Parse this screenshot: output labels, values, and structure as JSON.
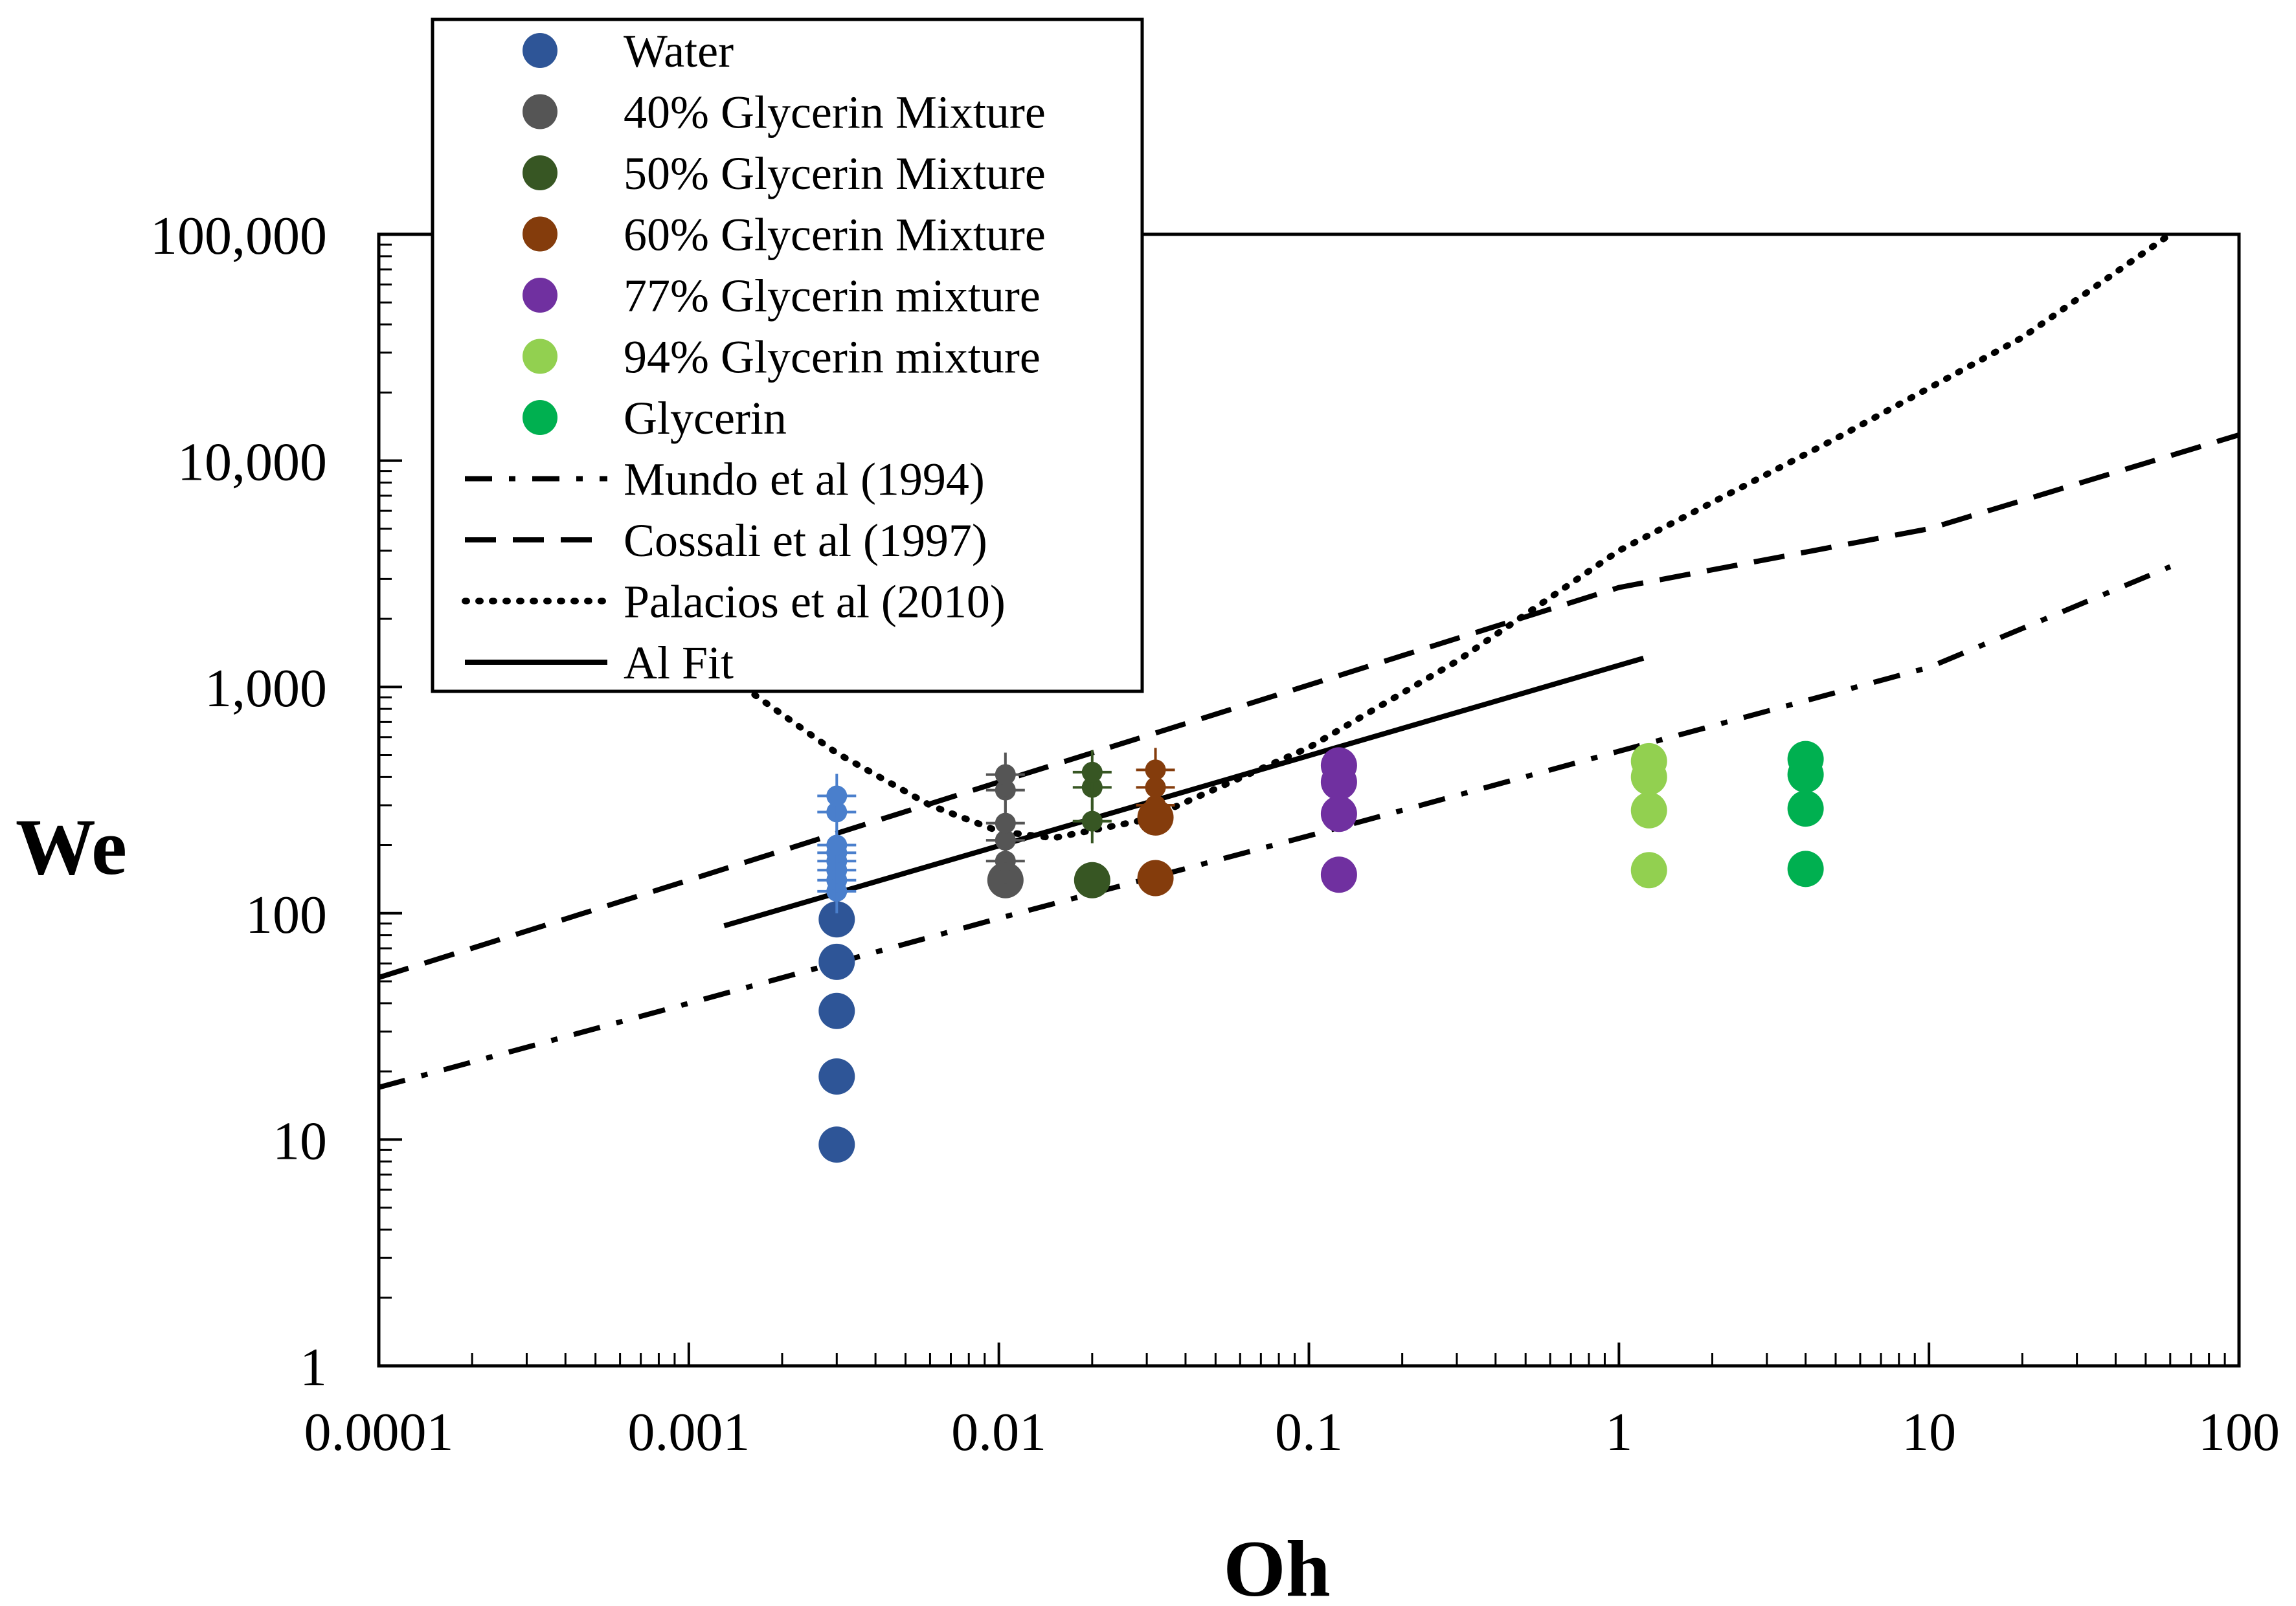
{
  "chart_data": {
    "type": "scatter",
    "title": "",
    "xlabel": "Oh",
    "ylabel": "We",
    "xscale": "log",
    "yscale": "log",
    "xlim": [
      0.0001,
      100
    ],
    "ylim": [
      1,
      100000
    ],
    "x_ticks": [
      0.0001,
      0.001,
      0.01,
      0.1,
      1,
      10,
      100
    ],
    "x_tick_labels": [
      "0.0001",
      "0.001",
      "0.01",
      "0.1",
      "1",
      "10",
      "100"
    ],
    "y_ticks": [
      1,
      10,
      100,
      1000,
      10000,
      100000
    ],
    "y_tick_labels": [
      "1",
      "10",
      "100",
      "1,000",
      "10,000",
      "100,000"
    ],
    "grid": false,
    "legend_position": "top-left, outside above plot",
    "series": [
      {
        "name": "Water",
        "kind": "scatter",
        "color": "#2E5597",
        "points": [
          [
            0.003,
            9.5
          ],
          [
            0.003,
            19
          ],
          [
            0.003,
            37
          ],
          [
            0.003,
            61
          ],
          [
            0.003,
            94
          ]
        ]
      },
      {
        "name": "Water (with error bars)",
        "kind": "errorbar",
        "color": "#4A7FCC",
        "legend": false,
        "points": [
          [
            0.003,
            125
          ],
          [
            0.003,
            140
          ],
          [
            0.003,
            155
          ],
          [
            0.003,
            170
          ],
          [
            0.003,
            185
          ],
          [
            0.003,
            200
          ],
          [
            0.003,
            280
          ],
          [
            0.003,
            330
          ]
        ]
      },
      {
        "name": "40% Glycerin Mixture",
        "kind": "scatter",
        "color": "#555555",
        "points": [
          [
            0.0105,
            140
          ]
        ]
      },
      {
        "name": "40% Glycerin Mixture (with error bars)",
        "kind": "errorbar",
        "color": "#555555",
        "legend": false,
        "points": [
          [
            0.0105,
            170
          ],
          [
            0.0105,
            210
          ],
          [
            0.0105,
            250
          ],
          [
            0.0105,
            350
          ],
          [
            0.0105,
            410
          ]
        ]
      },
      {
        "name": "50% Glycerin Mixture",
        "kind": "scatter",
        "color": "#375623",
        "points": [
          [
            0.02,
            140
          ]
        ]
      },
      {
        "name": "50% Glycerin Mixture (with error bars)",
        "kind": "errorbar",
        "color": "#375623",
        "legend": false,
        "points": [
          [
            0.02,
            255
          ],
          [
            0.02,
            360
          ],
          [
            0.02,
            420
          ]
        ]
      },
      {
        "name": "60% Glycerin Mixture",
        "kind": "scatter",
        "color": "#843C0C",
        "points": [
          [
            0.032,
            143
          ],
          [
            0.032,
            265
          ]
        ]
      },
      {
        "name": "60% Glycerin Mixture (with error bars)",
        "kind": "errorbar",
        "color": "#843C0C",
        "legend": false,
        "points": [
          [
            0.032,
            300
          ],
          [
            0.032,
            360
          ],
          [
            0.032,
            430
          ]
        ]
      },
      {
        "name": "77% Glycerin mixture",
        "kind": "scatter",
        "color": "#7030A0",
        "points": [
          [
            0.125,
            148
          ],
          [
            0.125,
            275
          ],
          [
            0.125,
            380
          ],
          [
            0.125,
            450
          ]
        ]
      },
      {
        "name": "94% Glycerin mixture",
        "kind": "scatter",
        "color": "#92D050",
        "points": [
          [
            1.25,
            155
          ],
          [
            1.25,
            285
          ],
          [
            1.25,
            400
          ],
          [
            1.25,
            470
          ]
        ]
      },
      {
        "name": "Glycerin",
        "kind": "scatter",
        "color": "#00B050",
        "points": [
          [
            4.0,
            157
          ],
          [
            4.0,
            290
          ],
          [
            4.0,
            410
          ],
          [
            4.0,
            480
          ]
        ]
      },
      {
        "name": "Mundo et al (1994)",
        "kind": "line",
        "style": "dashdot",
        "color": "#000000",
        "points": [
          [
            0.0001,
            17
          ],
          [
            0.001,
            40
          ],
          [
            0.01,
            95
          ],
          [
            0.1,
            220
          ],
          [
            1,
            520
          ],
          [
            10,
            1220
          ],
          [
            60,
            3400
          ]
        ]
      },
      {
        "name": "Cossali et al (1997)",
        "kind": "line",
        "style": "dashed",
        "color": "#000000",
        "points": [
          [
            0.0001,
            52
          ],
          [
            0.001,
            140
          ],
          [
            0.01,
            380
          ],
          [
            0.1,
            1020
          ],
          [
            1,
            2750
          ],
          [
            10,
            5000
          ],
          [
            100,
            13000
          ]
        ]
      },
      {
        "name": "Palacios et al (2010)",
        "kind": "line",
        "style": "dotted",
        "color": "#000000",
        "points": [
          [
            0.0015,
            1000
          ],
          [
            0.003,
            510
          ],
          [
            0.006,
            300
          ],
          [
            0.01,
            230
          ],
          [
            0.015,
            215
          ],
          [
            0.03,
            260
          ],
          [
            0.1,
            540
          ],
          [
            0.3,
            1300
          ],
          [
            1,
            4000
          ],
          [
            5,
            12500
          ],
          [
            20,
            35000
          ],
          [
            60,
            100000
          ]
        ]
      },
      {
        "name": "Al Fit",
        "kind": "line",
        "style": "solid",
        "color": "#000000",
        "points": [
          [
            0.0013,
            88
          ],
          [
            1.2,
            1340
          ]
        ]
      }
    ]
  }
}
